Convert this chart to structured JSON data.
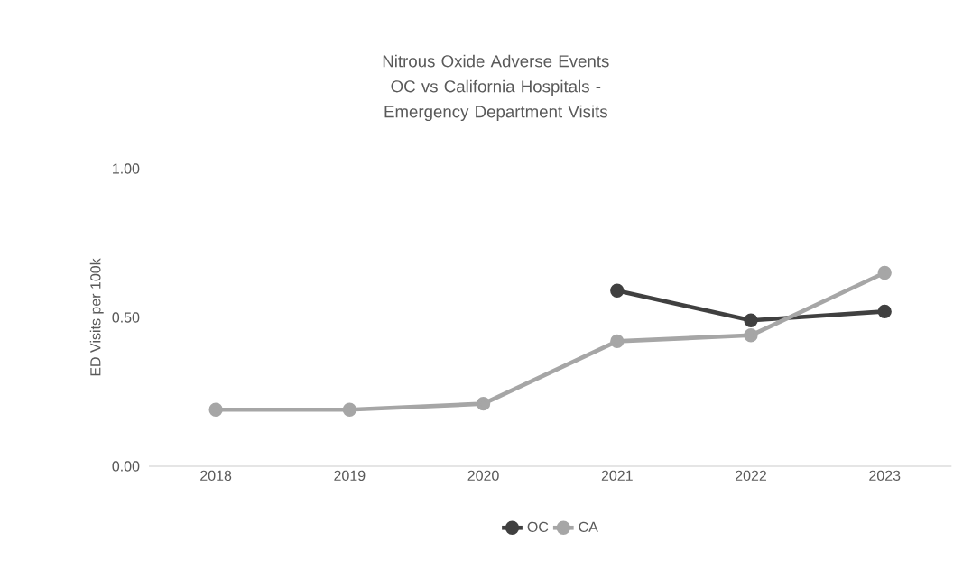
{
  "chart_data": {
    "type": "line",
    "title": "Nitrous Oxide Adverse Events OC vs California Hospitals - Emergency Department Visits",
    "ylabel": "ED Visits per 100k",
    "categories": [
      "2018",
      "2019",
      "2020",
      "2021",
      "2022",
      "2023"
    ],
    "series": [
      {
        "name": "OC",
        "color": "#404040",
        "values": [
          null,
          null,
          null,
          0.59,
          0.49,
          0.52
        ]
      },
      {
        "name": "CA",
        "color": "#a6a6a6",
        "values": [
          0.19,
          0.19,
          0.21,
          0.42,
          0.44,
          0.65
        ]
      }
    ],
    "ylim": [
      0,
      1
    ],
    "yticks": [
      {
        "value": 0,
        "label": "0.00"
      },
      {
        "value": 0.5,
        "label": "0.50"
      },
      {
        "value": 1,
        "label": "1.00"
      }
    ],
    "legend": "bottom",
    "marker": "circle",
    "line_style": "solid"
  }
}
